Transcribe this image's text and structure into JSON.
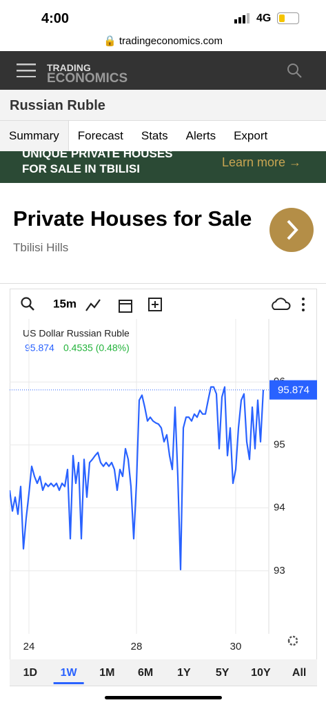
{
  "status": {
    "time": "4:00",
    "network": "4G"
  },
  "browser": {
    "url": "tradingeconomics.com"
  },
  "header": {
    "brand_top": "TRADING",
    "brand_bottom": "ECONOMICS"
  },
  "page_title": "Russian Ruble",
  "tabs": [
    "Summary",
    "Forecast",
    "Stats",
    "Alerts",
    "Export"
  ],
  "ad": {
    "banner_line1": "UNIQUE PRIVATE HOUSES",
    "banner_line2": "FOR SALE IN TBILISI",
    "banner_cta": "Learn more →",
    "title": "Private Houses for Sale",
    "subtitle": "Tbilisi Hills"
  },
  "chart_data": {
    "type": "line",
    "interval": "15m",
    "title": "US Dollar Russian Ruble",
    "change": "0.4535 (0.48%)",
    "categories": [
      null,
      null,
      null,
      null,
      null,
      null,
      null,
      "24",
      null,
      null,
      null,
      null,
      null,
      null,
      null,
      null,
      null,
      null,
      null,
      null,
      null,
      null,
      null,
      null,
      null,
      null,
      null,
      null,
      null,
      null,
      null,
      null,
      null,
      null,
      null,
      null,
      null,
      null,
      null,
      null,
      null,
      null,
      null,
      null,
      null,
      null,
      "28",
      null,
      null,
      null,
      null,
      null,
      null,
      null,
      null,
      null,
      null,
      null,
      null,
      null,
      null,
      null,
      null,
      null,
      null,
      null,
      null,
      null,
      null,
      null,
      null,
      null,
      null,
      null,
      null,
      null,
      null,
      null,
      null,
      null,
      null,
      null,
      "30",
      null,
      null,
      null,
      null,
      null,
      null,
      null,
      null,
      null,
      null
    ],
    "series": [
      {
        "name": "US Dollar Russian Ruble",
        "color": "#2962ff",
        "values": [
          94.28,
          93.95,
          94.17,
          93.9,
          94.34,
          93.35,
          93.84,
          94.23,
          94.66,
          94.5,
          94.39,
          94.5,
          94.28,
          94.39,
          94.34,
          94.39,
          94.34,
          94.39,
          94.28,
          94.39,
          94.34,
          94.61,
          93.51,
          94.83,
          94.39,
          94.72,
          93.51,
          94.77,
          94.17,
          94.72,
          94.77,
          94.83,
          94.88,
          94.72,
          94.66,
          94.72,
          94.66,
          94.72,
          94.61,
          94.28,
          94.61,
          94.5,
          94.94,
          94.77,
          94.34,
          93.51,
          94.39,
          95.71,
          95.79,
          95.6,
          95.38,
          95.44,
          95.38,
          95.35,
          95.33,
          95.27,
          95.05,
          95.16,
          94.83,
          94.61,
          95.6,
          94.5,
          93.02,
          95.27,
          95.44,
          95.44,
          95.38,
          95.49,
          95.44,
          95.55,
          95.49,
          95.49,
          95.71,
          95.92,
          95.92,
          95.81,
          94.94,
          95.76,
          95.92,
          94.83,
          95.27,
          94.39,
          94.61,
          95.27,
          95.71,
          95.81,
          95.05,
          94.77,
          95.6,
          94.94,
          95.71,
          95.05,
          95.874
        ]
      }
    ],
    "ylim": [
      92,
      97
    ],
    "yticks": [
      93,
      94,
      95,
      96
    ],
    "grid": true,
    "ranges": [
      "1D",
      "1W",
      "1M",
      "6M",
      "1Y",
      "5Y",
      "10Y",
      "All"
    ],
    "active_range": 1
  }
}
